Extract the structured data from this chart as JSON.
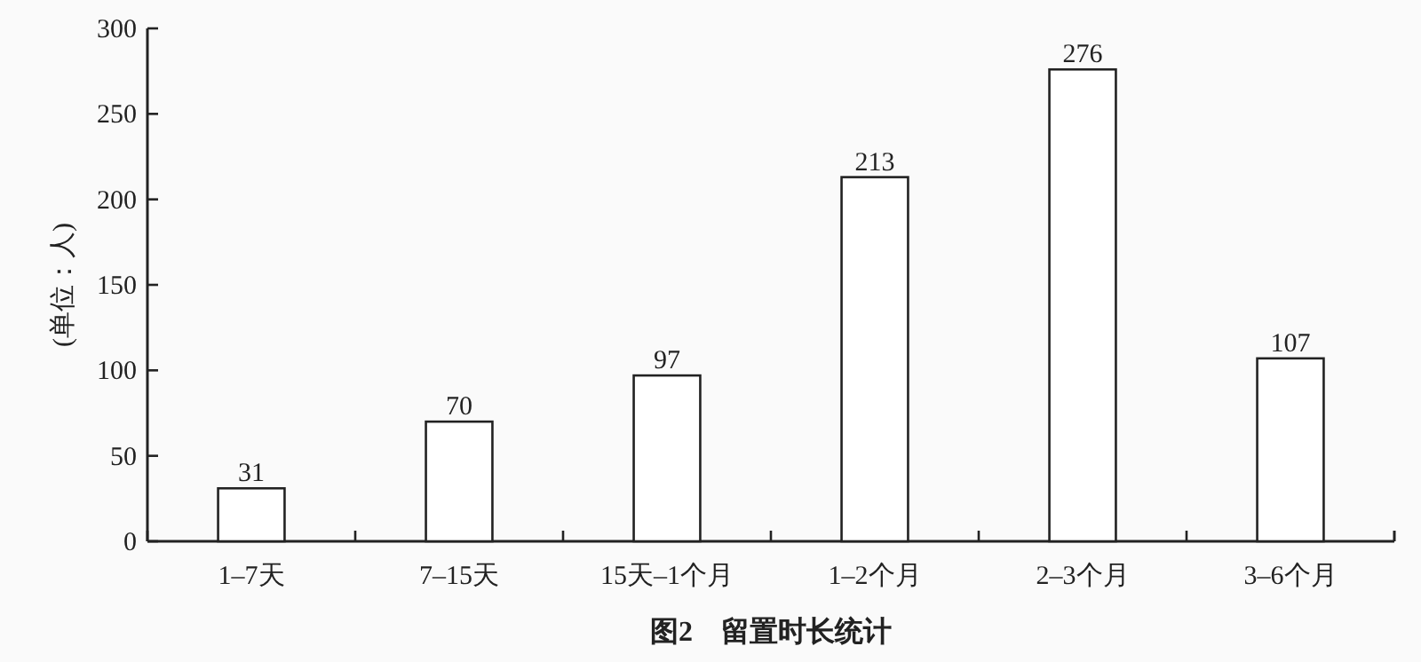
{
  "chart_data": {
    "type": "bar",
    "title": "图2　留置时长统计",
    "ylabel": "(单位：人)",
    "categories": [
      "1–7天",
      "7–15天",
      "15天–1个月",
      "1–2个月",
      "2–3个月",
      "3–6个月"
    ],
    "values": [
      31,
      70,
      97,
      213,
      276,
      107
    ],
    "color": "#ffffff",
    "ylim": [
      0,
      300
    ],
    "yticks": [
      0,
      50,
      100,
      150,
      200,
      250,
      300
    ],
    "data_labels": true,
    "grid": false
  }
}
